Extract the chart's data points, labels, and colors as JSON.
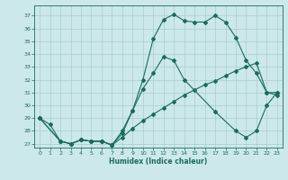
{
  "xlabel": "Humidex (Indice chaleur)",
  "xlim": [
    -0.5,
    23.5
  ],
  "ylim": [
    26.7,
    37.8
  ],
  "yticks": [
    27,
    28,
    29,
    30,
    31,
    32,
    33,
    34,
    35,
    36,
    37
  ],
  "xticks": [
    0,
    1,
    2,
    3,
    4,
    5,
    6,
    7,
    8,
    9,
    10,
    11,
    12,
    13,
    14,
    15,
    16,
    17,
    18,
    19,
    20,
    21,
    22,
    23
  ],
  "background_color": "#cce8ea",
  "grid_color": "#aaccce",
  "line_color": "#1a6b5e",
  "line1_x": [
    0,
    1,
    2,
    3,
    4,
    5,
    6,
    7,
    8,
    9,
    10,
    11,
    12,
    13,
    14,
    15,
    16,
    17,
    18,
    19,
    20,
    21,
    22,
    23
  ],
  "line1_y": [
    29.0,
    28.5,
    27.2,
    27.0,
    27.3,
    27.2,
    27.2,
    26.9,
    28.0,
    29.6,
    32.0,
    35.2,
    36.7,
    37.1,
    36.6,
    36.5,
    36.5,
    37.0,
    36.5,
    35.3,
    33.5,
    32.5,
    31.0,
    30.8
  ],
  "line2_x": [
    0,
    2,
    3,
    4,
    5,
    6,
    7,
    8,
    9,
    10,
    11,
    12,
    13,
    14,
    17,
    19,
    20,
    21,
    22,
    23
  ],
  "line2_y": [
    29.0,
    27.2,
    27.0,
    27.3,
    27.2,
    27.2,
    26.9,
    27.8,
    29.6,
    31.3,
    32.5,
    33.8,
    33.5,
    32.0,
    29.5,
    28.0,
    27.5,
    28.0,
    30.0,
    31.0
  ],
  "line3_x": [
    0,
    2,
    3,
    4,
    5,
    6,
    7,
    8,
    9,
    10,
    11,
    12,
    13,
    14,
    15,
    16,
    17,
    18,
    19,
    20,
    21,
    22,
    23
  ],
  "line3_y": [
    29.0,
    27.2,
    27.0,
    27.3,
    27.2,
    27.2,
    26.9,
    27.5,
    28.2,
    28.8,
    29.3,
    29.8,
    30.3,
    30.8,
    31.2,
    31.6,
    31.9,
    32.3,
    32.7,
    33.0,
    33.3,
    31.0,
    31.0
  ]
}
